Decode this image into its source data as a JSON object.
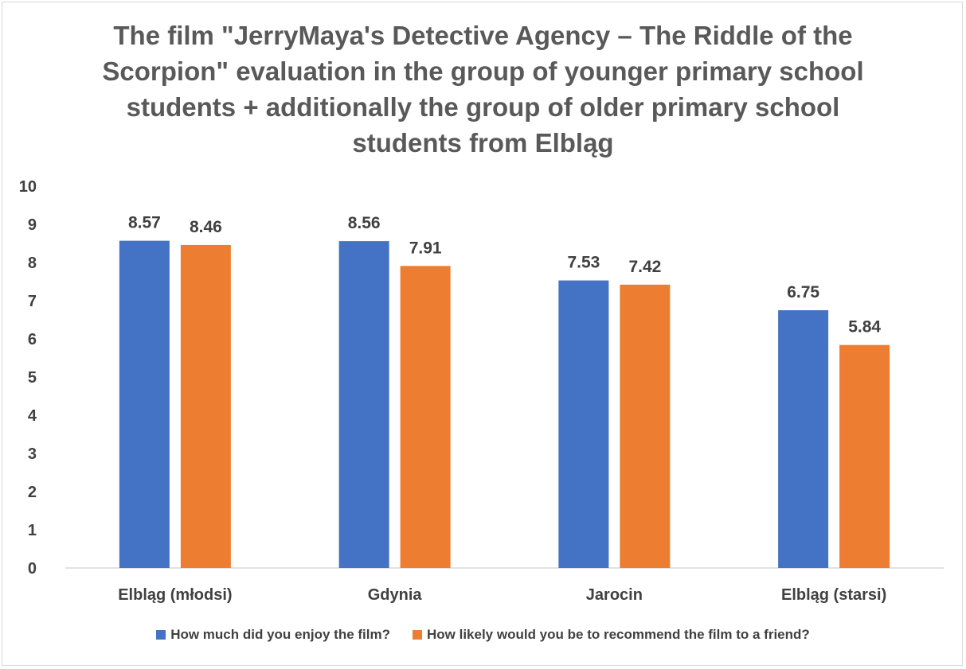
{
  "chart_data": {
    "type": "bar",
    "title": "The film \"JerryMaya's Detective Agency – The Riddle of the Scorpion\" evaluation in the group of younger primary school students + additionally the group of older primary school students from Elbląg",
    "categories": [
      "Elbląg (młodsi)",
      "Gdynia",
      "Jarocin",
      "Elbląg (starsi)"
    ],
    "series": [
      {
        "name": "How much did you enjoy the film?",
        "values": [
          8.57,
          8.56,
          7.53,
          6.75
        ],
        "color": "#4472c4"
      },
      {
        "name": "How likely would you be to recommend the film to a friend?",
        "values": [
          8.46,
          7.91,
          7.42,
          5.84
        ],
        "color": "#ed7d31"
      }
    ],
    "ylim": [
      0,
      10
    ],
    "yticks": [
      "0",
      "1",
      "2",
      "3",
      "4",
      "5",
      "6",
      "7",
      "8",
      "9",
      "10"
    ],
    "value_labels": [
      [
        "8.57",
        "8.56",
        "7.53",
        "6.75"
      ],
      [
        "8.46",
        "7.91",
        "7.42",
        "5.84"
      ]
    ],
    "grid": false,
    "legend": "bottom"
  }
}
